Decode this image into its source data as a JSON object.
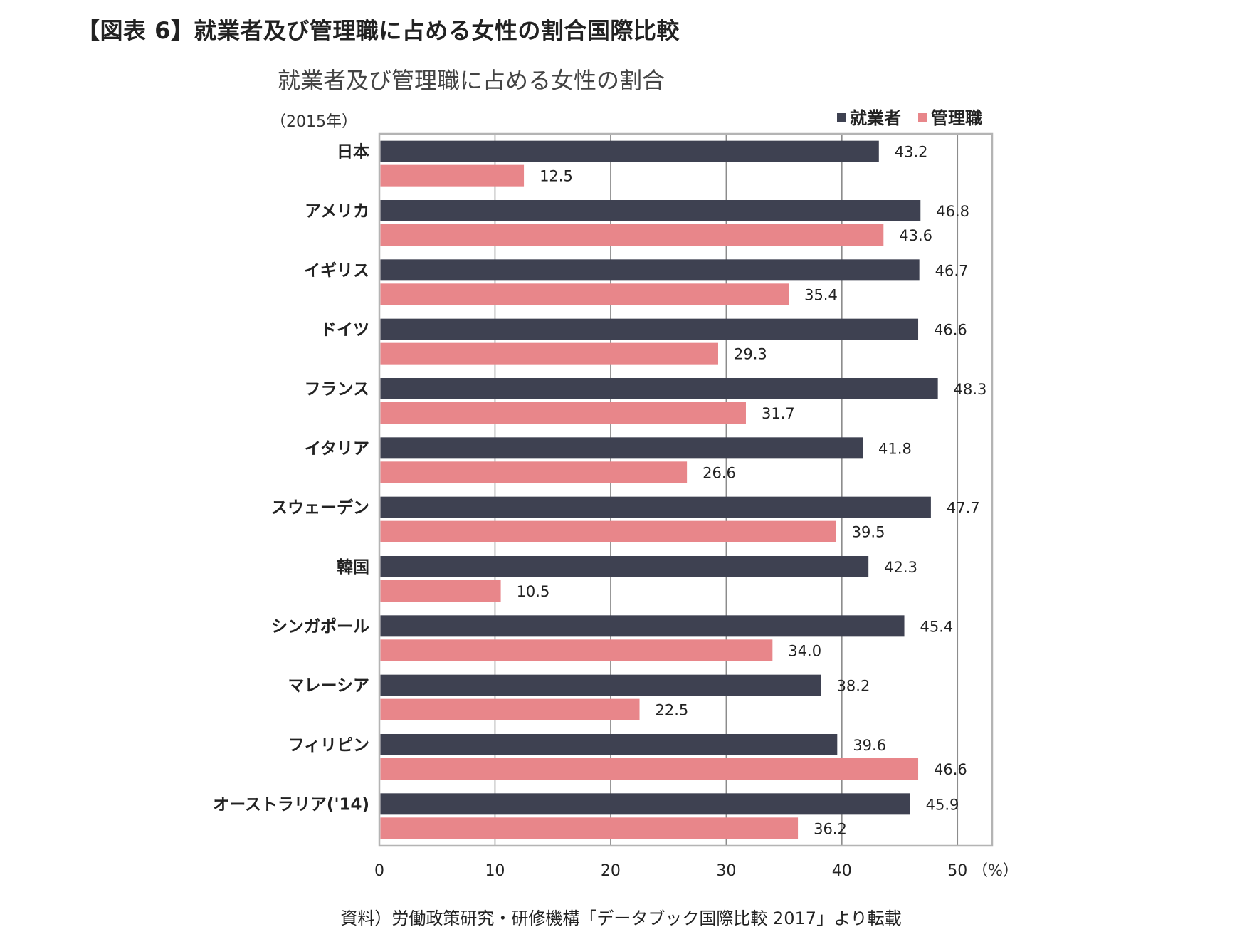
{
  "figure_title": "【図表 6】就業者及び管理職に占める女性の割合国際比較",
  "source_note": "資料）労働政策研究・研修機構「データブック国際比較 2017」より転載",
  "colors": {
    "employed": "#3e4151",
    "managers": "#e8868a",
    "grid": "#8c8c8c",
    "frame": "#b4b4b4"
  },
  "chart_data": {
    "type": "bar",
    "orientation": "horizontal",
    "title": "就業者及び管理職に占める女性の割合",
    "subtitle": "（2015年）",
    "xlabel": "",
    "x_unit": "（%）",
    "xlim": [
      0,
      53
    ],
    "x_ticks": [
      0,
      10,
      20,
      30,
      40,
      50
    ],
    "legend_position": "top-right",
    "grid": true,
    "categories": [
      "日本",
      "アメリカ",
      "イギリス",
      "ドイツ",
      "フランス",
      "イタリア",
      "スウェーデン",
      "韓国",
      "シンガポール",
      "マレーシア",
      "フィリピン",
      "オーストラリア('14)"
    ],
    "series": [
      {
        "name": "就業者",
        "color": "#3e4151",
        "values": [
          43.2,
          46.8,
          46.7,
          46.6,
          48.3,
          41.8,
          47.7,
          42.3,
          45.4,
          38.2,
          39.6,
          45.9
        ]
      },
      {
        "name": "管理職",
        "color": "#e8868a",
        "values": [
          12.5,
          43.6,
          35.4,
          29.3,
          31.7,
          26.6,
          39.5,
          10.5,
          34.0,
          22.5,
          46.6,
          36.2
        ]
      }
    ]
  }
}
